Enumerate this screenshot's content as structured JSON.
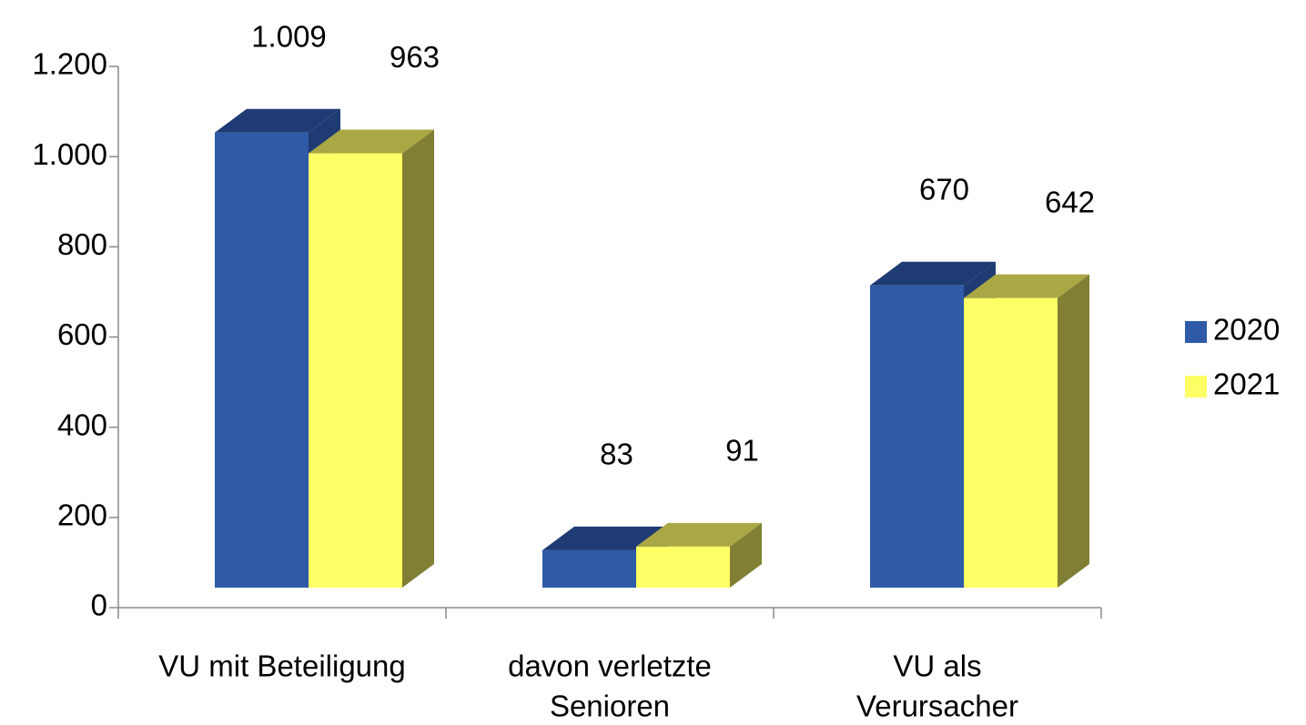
{
  "chart_data": {
    "type": "bar3d",
    "categories": [
      [
        "VU mit Beteiligung"
      ],
      [
        "davon verletzte",
        "Senioren"
      ],
      [
        "VU als",
        "Verursacher"
      ]
    ],
    "series": [
      {
        "name": "2020",
        "color": "#2e5aa8",
        "top": "#1f3b73",
        "side": "#1f3b73",
        "values": [
          1009,
          83,
          670
        ],
        "value_labels": [
          "1.009",
          "83",
          "670"
        ]
      },
      {
        "name": "2021",
        "color": "#ffff66",
        "top": "#aaa844",
        "side": "#807f33",
        "values": [
          963,
          91,
          642
        ],
        "value_labels": [
          "963",
          "91",
          "642"
        ]
      }
    ],
    "ylim": [
      0,
      1200
    ],
    "yticks": [
      0,
      200,
      400,
      600,
      800,
      {
        "value": 1000,
        "label": "1.000"
      },
      {
        "value": 1200,
        "label": "1.200"
      }
    ],
    "legend": "right"
  }
}
